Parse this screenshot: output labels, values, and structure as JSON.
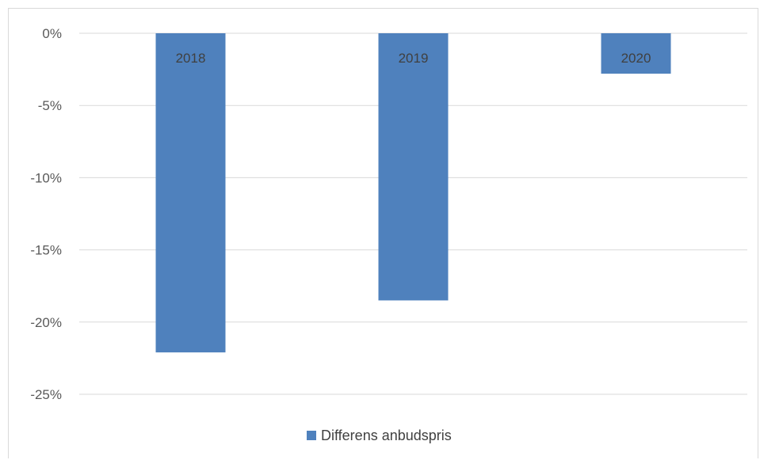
{
  "chart_data": {
    "type": "bar",
    "categories": [
      "2018",
      "2019",
      "2020"
    ],
    "series": [
      {
        "name": "Differens anbudspris",
        "values": [
          -22.1,
          -18.5,
          -2.8
        ]
      }
    ],
    "data_labels": [
      "2018",
      "2019",
      "2020"
    ],
    "ylim": [
      -25,
      0
    ],
    "yticks": [
      0,
      -5,
      -10,
      -15,
      -20,
      -25
    ],
    "ytick_labels": [
      "0%",
      "-5%",
      "-10%",
      "-15%",
      "-20%",
      "-25%"
    ],
    "grid": true,
    "legend": "bottom",
    "colors": {
      "bar": "#4f81bd",
      "grid": "#d9d9d9"
    }
  }
}
